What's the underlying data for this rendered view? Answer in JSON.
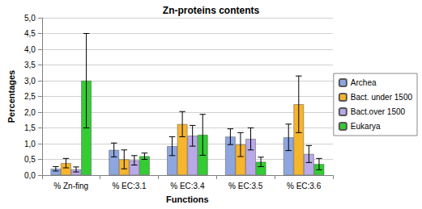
{
  "chart_data": {
    "type": "bar",
    "title": "Zn-proteins contents",
    "x_label": "Functions",
    "y_label": "Percentages",
    "categories": [
      "% Zn-fing",
      "% EC:3.1",
      "% EC:3.4",
      "% EC:3.5",
      "% EC:3.6"
    ],
    "series": [
      {
        "name": "Archea",
        "color": "#8ea6e0",
        "values": [
          0.2,
          0.8,
          0.92,
          1.22,
          1.2
        ],
        "errors": [
          0.07,
          0.22,
          0.3,
          0.25,
          0.42
        ]
      },
      {
        "name": "Bact. under 1500",
        "color": "#f7b52c",
        "values": [
          0.38,
          0.5,
          1.62,
          0.97,
          2.25
        ],
        "errors": [
          0.15,
          0.3,
          0.4,
          0.38,
          0.9
        ]
      },
      {
        "name": "Bact.over 1500",
        "color": "#b9a9e9",
        "values": [
          0.18,
          0.47,
          1.25,
          1.15,
          0.67
        ],
        "errors": [
          0.08,
          0.15,
          0.33,
          0.35,
          0.27
        ]
      },
      {
        "name": "Eukarya",
        "color": "#33cc33",
        "values": [
          3.0,
          0.6,
          1.28,
          0.42,
          0.35
        ],
        "errors": [
          1.5,
          0.1,
          0.65,
          0.15,
          0.18
        ]
      }
    ],
    "ylim": [
      0,
      5
    ],
    "yticks": [
      {
        "value": 0,
        "label": "0,0"
      },
      {
        "value": 0.5,
        "label": "0,5"
      },
      {
        "value": 1,
        "label": "1,0"
      },
      {
        "value": 1.5,
        "label": "1,5"
      },
      {
        "value": 2,
        "label": "2,0"
      },
      {
        "value": 2.5,
        "label": "2,5"
      },
      {
        "value": 3,
        "label": "3,0"
      },
      {
        "value": 3.5,
        "label": "3,5"
      },
      {
        "value": 4,
        "label": "4,0"
      },
      {
        "value": 4.5,
        "label": "4,5"
      },
      {
        "value": 5,
        "label": "5,0"
      }
    ],
    "grid": true,
    "legend": "right"
  }
}
